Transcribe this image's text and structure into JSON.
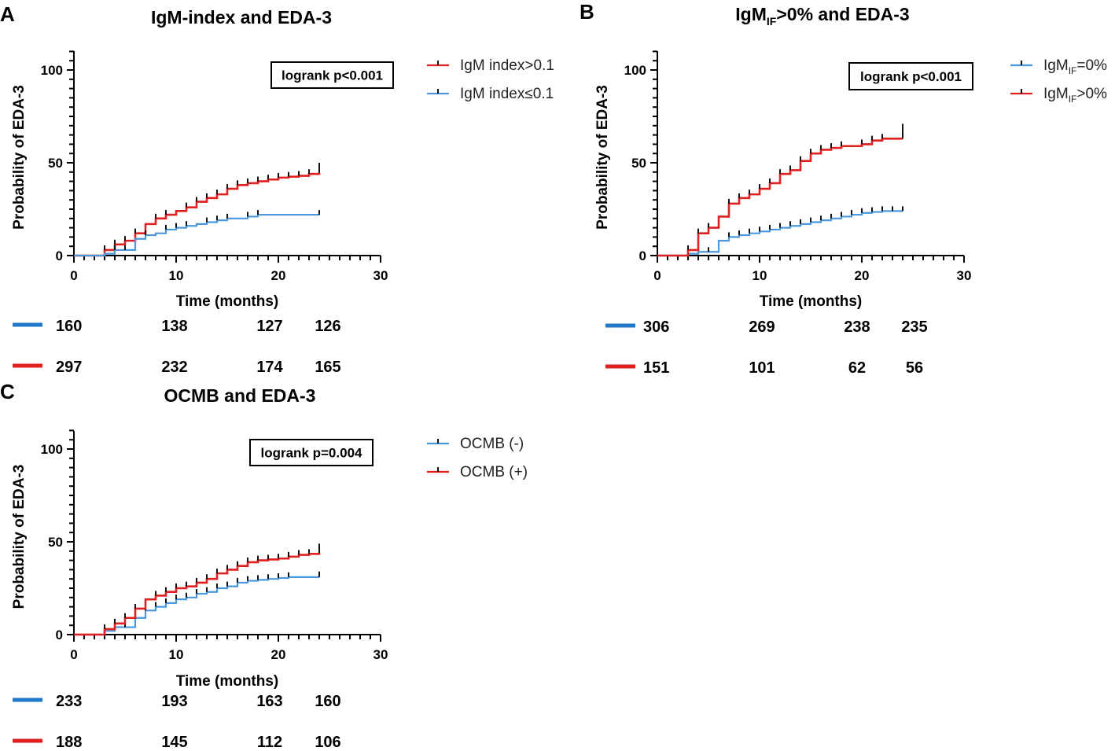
{
  "panels": [
    {
      "id": "A",
      "letter": "A",
      "title": "IgM-index and EDA-3",
      "pvalue": "logrank p<0.001",
      "legend": [
        {
          "pre": "IgM index>0.1",
          "sub": "",
          "post": "",
          "color": "#e01f1f"
        },
        {
          "pre": "IgM index≤0.1",
          "sub": "",
          "post": "",
          "color": "#4a98db"
        }
      ],
      "risk_rows": [
        {
          "color": "#1f78c8",
          "values": [
            "160",
            "138",
            "127",
            "126"
          ]
        },
        {
          "color": "#e01f1f",
          "values": [
            "297",
            "232",
            "174",
            "165"
          ]
        }
      ]
    },
    {
      "id": "B",
      "letter": "B",
      "title": "IgMIF>0% and EDA-3",
      "title_parts": {
        "pre": "IgM",
        "sub": "IF",
        "post": ">0% and EDA-3"
      },
      "pvalue": "logrank p<0.001",
      "legend": [
        {
          "pre": "IgM",
          "sub": "IF",
          "post": "=0%",
          "color": "#4a98db"
        },
        {
          "pre": "IgM",
          "sub": "IF",
          "post": ">0%",
          "color": "#e01f1f"
        }
      ],
      "risk_rows": [
        {
          "color": "#1f78c8",
          "values": [
            "306",
            "269",
            "238",
            "235"
          ]
        },
        {
          "color": "#e01f1f",
          "values": [
            "151",
            "101",
            "62",
            "56"
          ]
        }
      ]
    },
    {
      "id": "C",
      "letter": "C",
      "title": "OCMB and EDA-3",
      "pvalue": "logrank p=0.004",
      "legend": [
        {
          "pre": "OCMB (-)",
          "sub": "",
          "post": "",
          "color": "#4a98db"
        },
        {
          "pre": "OCMB (+)",
          "sub": "",
          "post": "",
          "color": "#e01f1f"
        }
      ],
      "risk_rows": [
        {
          "color": "#1f78c8",
          "values": [
            "233",
            "193",
            "163",
            "160"
          ]
        },
        {
          "color": "#e01f1f",
          "values": [
            "188",
            "145",
            "112",
            "106"
          ]
        }
      ]
    }
  ],
  "chart_data": [
    {
      "panel": "A",
      "type": "line",
      "step": true,
      "title": "IgM-index and EDA-3",
      "xlabel": "Time (months)",
      "ylabel": "Probability of EDA-3",
      "xlim": [
        0,
        30
      ],
      "ylim": [
        0,
        110
      ],
      "xticks": [
        0,
        10,
        20,
        30
      ],
      "yticks": [
        0,
        50,
        100
      ],
      "series": [
        {
          "name": "IgM index>0.1",
          "color": "#e01f1f",
          "x": [
            0,
            3,
            4,
            5,
            6,
            7,
            8,
            9,
            10,
            11,
            12,
            13,
            14,
            15,
            16,
            17,
            18,
            19,
            20,
            21,
            22,
            23,
            24
          ],
          "y": [
            0,
            3,
            6,
            8,
            12,
            17,
            20,
            22,
            24,
            26,
            29,
            31,
            33,
            36,
            38,
            39,
            40,
            41,
            42,
            42.5,
            43,
            44,
            44.5
          ],
          "censor_x": [
            3,
            4,
            5,
            6,
            8,
            9,
            11,
            12,
            13,
            14,
            15,
            16,
            17,
            18,
            19,
            20,
            21,
            22,
            23,
            24
          ],
          "censor_y": [
            3,
            6,
            8,
            12,
            20,
            22,
            26,
            29,
            31,
            33,
            36,
            38,
            39,
            40,
            41,
            42,
            42.5,
            43,
            44,
            44.5
          ],
          "end_x": 24,
          "end_top": 50
        },
        {
          "name": "IgM index≤0.1",
          "color": "#4a98db",
          "x": [
            0,
            3,
            4,
            6,
            7,
            8,
            9,
            10,
            11,
            12,
            13,
            14,
            15,
            17,
            18,
            24
          ],
          "y": [
            0,
            1,
            3,
            9,
            11,
            12,
            14,
            15,
            16,
            17,
            18,
            19,
            20,
            21,
            22,
            22
          ],
          "censor_x": [
            4,
            5,
            7,
            9,
            10,
            11,
            13,
            14,
            15,
            17,
            18,
            24
          ],
          "censor_y": [
            3,
            3,
            11,
            14,
            15,
            16,
            18,
            19,
            20,
            21,
            22,
            22
          ],
          "end_x": 24,
          "end_top": 23
        }
      ]
    },
    {
      "panel": "B",
      "type": "line",
      "step": true,
      "title": "IgMIF>0% and EDA-3",
      "xlabel": "Time (months)",
      "ylabel": "Probability of EDA-3",
      "xlim": [
        0,
        30
      ],
      "ylim": [
        0,
        110
      ],
      "xticks": [
        0,
        10,
        20,
        30
      ],
      "yticks": [
        0,
        50,
        100
      ],
      "series": [
        {
          "name": "IgMIF=0%",
          "color": "#4a98db",
          "x": [
            0,
            3,
            4,
            6,
            7,
            8,
            9,
            10,
            11,
            12,
            13,
            14,
            15,
            16,
            17,
            18,
            19,
            20,
            21,
            22,
            24
          ],
          "y": [
            0,
            1,
            2,
            8,
            10,
            11,
            12,
            13,
            14,
            15,
            16,
            17,
            18,
            19,
            20,
            21,
            22,
            23,
            23.5,
            24,
            24
          ],
          "censor_x": [
            3,
            5,
            7,
            8,
            9,
            10,
            11,
            12,
            13,
            14,
            15,
            16,
            17,
            18,
            19,
            20,
            21,
            22,
            23,
            24
          ],
          "censor_y": [
            1,
            2,
            10,
            11,
            12,
            13,
            14,
            15,
            16,
            17,
            18,
            19,
            20,
            21,
            22,
            23,
            23.5,
            24,
            24,
            24
          ],
          "end_x": 24,
          "end_top": 26
        },
        {
          "name": "IgMIF>0%",
          "color": "#e01f1f",
          "x": [
            0,
            3,
            4,
            5,
            6,
            7,
            8,
            9,
            10,
            11,
            12,
            13,
            14,
            15,
            16,
            17,
            18,
            20,
            21,
            22,
            24
          ],
          "y": [
            0,
            3,
            12,
            15,
            21,
            28,
            31,
            33,
            36,
            39,
            44,
            46,
            51,
            55,
            57,
            58,
            59,
            60,
            62,
            63,
            63
          ],
          "censor_x": [
            3,
            4,
            5,
            7,
            8,
            9,
            10,
            11,
            12,
            13,
            14,
            15,
            16,
            17,
            18,
            20,
            21,
            22,
            24
          ],
          "censor_y": [
            3,
            12,
            15,
            28,
            31,
            33,
            36,
            39,
            44,
            46,
            51,
            55,
            57,
            58,
            59,
            60,
            62,
            63,
            63
          ],
          "end_x": 24,
          "end_top": 71
        }
      ]
    },
    {
      "panel": "C",
      "type": "line",
      "step": true,
      "title": "OCMB and EDA-3",
      "xlabel": "Time (months)",
      "ylabel": "Probability of EDA-3",
      "xlim": [
        0,
        30
      ],
      "ylim": [
        0,
        110
      ],
      "xticks": [
        0,
        10,
        20,
        30
      ],
      "yticks": [
        0,
        50,
        100
      ],
      "series": [
        {
          "name": "OCMB (-)",
          "color": "#4a98db",
          "x": [
            0,
            3,
            4,
            6,
            7,
            8,
            9,
            10,
            11,
            12,
            13,
            14,
            15,
            16,
            17,
            18,
            19,
            20,
            21,
            24
          ],
          "y": [
            0,
            2,
            4,
            9,
            13,
            15,
            17,
            19,
            20,
            22,
            23,
            25,
            26,
            28,
            29,
            29.5,
            30,
            30.5,
            31,
            31
          ],
          "censor_x": [
            3,
            5,
            7,
            8,
            9,
            10,
            11,
            12,
            13,
            14,
            15,
            16,
            17,
            18,
            19,
            20,
            21,
            24
          ],
          "censor_y": [
            2,
            4,
            13,
            15,
            17,
            19,
            20,
            22,
            23,
            25,
            26,
            28,
            29,
            29.5,
            30,
            30.5,
            31,
            31
          ],
          "end_x": 24,
          "end_top": 34
        },
        {
          "name": "OCMB (+)",
          "color": "#e01f1f",
          "x": [
            0,
            3,
            4,
            5,
            6,
            7,
            8,
            9,
            10,
            11,
            12,
            13,
            14,
            15,
            16,
            17,
            18,
            19,
            20,
            21,
            22,
            23,
            24
          ],
          "y": [
            0,
            3,
            6,
            9,
            14,
            19,
            21,
            23,
            25,
            26,
            28,
            30,
            33,
            35,
            37,
            39,
            40,
            40.5,
            41,
            42,
            43,
            43.5,
            44
          ],
          "censor_x": [
            3,
            4,
            5,
            6,
            8,
            9,
            10,
            11,
            12,
            13,
            14,
            15,
            16,
            17,
            18,
            19,
            20,
            21,
            22,
            23,
            24
          ],
          "censor_y": [
            3,
            6,
            9,
            14,
            21,
            23,
            25,
            26,
            28,
            30,
            33,
            35,
            37,
            39,
            40,
            40.5,
            41,
            42,
            43,
            43.5,
            44
          ],
          "end_x": 24,
          "end_top": 49
        }
      ]
    }
  ]
}
